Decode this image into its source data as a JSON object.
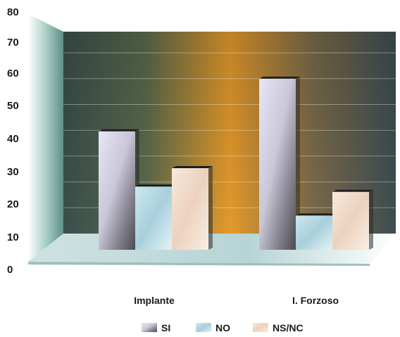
{
  "chart_data": {
    "type": "bar",
    "categories": [
      "Implante",
      "I. Forzoso"
    ],
    "series": [
      {
        "name": "SI",
        "values": [
          45,
          65
        ],
        "color": "#d8d6e6"
      },
      {
        "name": "NO",
        "values": [
          24,
          13
        ],
        "color": "#b9dbe6"
      },
      {
        "name": "NS/NC",
        "values": [
          31,
          22
        ],
        "color": "#f2e0cf"
      }
    ],
    "y_ticks": [
      "0",
      "10",
      "20",
      "30",
      "40",
      "50",
      "60",
      "70",
      "80"
    ],
    "ylim": [
      0,
      80
    ],
    "grid": true,
    "legend_position": "bottom",
    "title": "",
    "xlabel": "",
    "ylabel": "",
    "colors": {
      "wall_left": "#3a4f4c",
      "wall_center": "#e59a2a",
      "wall_right": "#3d4d52",
      "floor": "#bcd5d6",
      "side_wall": "#7fb2a8"
    }
  }
}
